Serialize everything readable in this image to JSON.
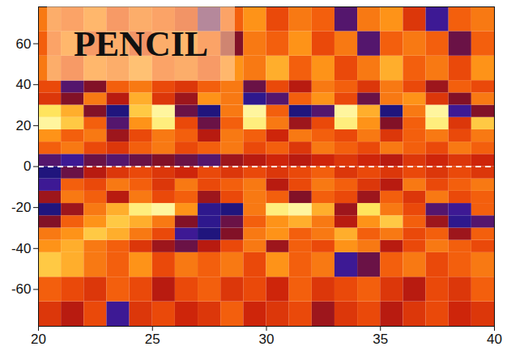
{
  "chart_data": {
    "type": "heatmap",
    "annotation": "PENCIL",
    "xlim": [
      20,
      40
    ],
    "xticks": [
      20,
      25,
      30,
      35,
      40
    ],
    "ylim": [
      -78,
      78
    ],
    "yticks": [
      -60,
      -40,
      -20,
      0,
      20,
      40,
      60
    ],
    "reference_line": 0,
    "value_range": [
      -1,
      1
    ],
    "x_edges": [
      20,
      21,
      22,
      23,
      24,
      25,
      26,
      27,
      28,
      29,
      30,
      31,
      32,
      33,
      34,
      35,
      36,
      37,
      38,
      39,
      40
    ],
    "lat_edges": [
      -78,
      -66,
      -54,
      -42,
      -36,
      -30,
      -24,
      -18,
      -12,
      -6,
      0,
      6,
      12,
      18,
      24,
      30,
      36,
      42,
      54,
      66,
      78
    ],
    "values": [
      [
        0.0,
        -0.2,
        0.1,
        -0.7,
        0.0,
        0.1,
        -0.1,
        0.0,
        0.2,
        -0.1,
        0.0,
        0.1,
        -0.3,
        0.0,
        0.1,
        -0.2,
        0.0,
        0.1,
        -0.1,
        0.0
      ],
      [
        0.2,
        0.1,
        0.0,
        0.2,
        0.1,
        -0.2,
        0.1,
        0.2,
        0.0,
        0.1,
        -0.1,
        0.2,
        0.0,
        0.1,
        0.2,
        0.0,
        -0.2,
        0.1,
        0.0,
        0.2
      ],
      [
        0.6,
        0.5,
        0.3,
        0.2,
        0.4,
        0.1,
        0.3,
        0.2,
        0.3,
        0.1,
        0.4,
        0.2,
        0.3,
        -0.7,
        -0.5,
        0.2,
        0.3,
        0.1,
        0.2,
        0.3
      ],
      [
        0.4,
        0.5,
        0.3,
        0.2,
        0.0,
        -0.3,
        -0.5,
        -0.2,
        0.1,
        0.3,
        -0.3,
        0.2,
        0.1,
        0.4,
        0.3,
        -0.2,
        0.1,
        0.3,
        0.2,
        0.1
      ],
      [
        0.3,
        0.4,
        0.6,
        0.5,
        0.3,
        0.1,
        -0.7,
        -0.9,
        -0.4,
        0.3,
        0.4,
        0.2,
        0.3,
        0.5,
        0.2,
        0.3,
        0.1,
        0.2,
        -0.3,
        0.2
      ],
      [
        -0.4,
        0.2,
        0.4,
        0.6,
        0.5,
        0.3,
        -0.4,
        -0.8,
        -0.5,
        0.2,
        0.4,
        0.5,
        0.3,
        -0.2,
        0.4,
        0.6,
        0.2,
        -0.3,
        -0.8,
        -0.6
      ],
      [
        -0.9,
        -0.3,
        0.3,
        0.5,
        0.8,
        0.9,
        0.4,
        -0.8,
        -0.9,
        0.3,
        0.8,
        0.9,
        0.5,
        -0.3,
        0.7,
        0.3,
        0.1,
        -0.6,
        -0.7,
        0.2
      ],
      [
        -0.3,
        0.3,
        0.2,
        -0.2,
        0.3,
        0.1,
        0.2,
        -0.3,
        0.1,
        0.3,
        0.2,
        -0.4,
        0.2,
        0.1,
        -0.3,
        0.2,
        0.0,
        0.3,
        0.1,
        0.2
      ],
      [
        -0.7,
        0.2,
        0.1,
        0.3,
        0.2,
        0.0,
        0.3,
        0.1,
        0.2,
        0.3,
        -0.2,
        0.1,
        0.3,
        0.2,
        0.0,
        -0.2,
        0.3,
        0.1,
        0.2,
        0.3
      ],
      [
        -0.9,
        -0.5,
        -0.2,
        0.0,
        0.1,
        0.0,
        -0.1,
        0.1,
        0.0,
        0.1,
        0.0,
        0.1,
        0.2,
        0.0,
        0.1,
        0.0,
        0.1,
        0.0,
        0.1,
        0.0
      ],
      [
        -0.6,
        -0.7,
        -0.5,
        -0.6,
        -0.5,
        -0.4,
        -0.5,
        -0.6,
        -0.3,
        -0.2,
        -0.1,
        -0.2,
        -0.1,
        0.0,
        -0.1,
        -0.2,
        0.0,
        -0.1,
        0.0,
        -0.1
      ],
      [
        0.2,
        0.3,
        0.1,
        0.0,
        0.2,
        0.3,
        0.1,
        0.2,
        0.3,
        0.1,
        0.2,
        0.0,
        0.3,
        0.2,
        0.1,
        0.3,
        0.2,
        0.1,
        0.3,
        0.2
      ],
      [
        0.4,
        0.2,
        0.3,
        -0.3,
        0.1,
        0.3,
        0.2,
        -0.2,
        0.3,
        0.2,
        -0.1,
        0.3,
        0.2,
        0.1,
        0.3,
        0.0,
        0.2,
        0.3,
        0.1,
        0.3
      ],
      [
        0.9,
        0.6,
        0.2,
        -0.6,
        0.4,
        0.8,
        0.1,
        -0.5,
        0.2,
        0.8,
        0.3,
        -0.3,
        0.1,
        0.8,
        0.4,
        -0.4,
        0.2,
        0.8,
        0.0,
        0.6
      ],
      [
        0.7,
        0.5,
        -0.4,
        -0.9,
        0.6,
        0.9,
        -0.5,
        -0.9,
        0.3,
        0.9,
        0.2,
        -0.9,
        -0.6,
        0.9,
        0.5,
        -0.9,
        0.3,
        0.9,
        -0.7,
        -0.4
      ],
      [
        0.0,
        -0.4,
        0.3,
        -0.2,
        0.5,
        0.0,
        -0.3,
        0.4,
        0.3,
        -0.8,
        -0.6,
        0.2,
        0.4,
        0.1,
        -0.5,
        0.3,
        0.4,
        0.0,
        -0.4,
        0.3
      ],
      [
        0.1,
        -0.6,
        -0.4,
        0.2,
        0.3,
        0.1,
        0.0,
        0.2,
        0.3,
        -0.5,
        0.1,
        -0.2,
        0.3,
        0.2,
        0.0,
        0.3,
        0.1,
        -0.3,
        0.2,
        0.1
      ],
      [
        0.3,
        0.1,
        0.4,
        0.3,
        0.5,
        0.2,
        0.3,
        0.1,
        0.4,
        0.3,
        0.5,
        0.2,
        0.4,
        0.1,
        0.3,
        0.5,
        0.2,
        0.3,
        0.1,
        0.4
      ],
      [
        0.2,
        0.4,
        0.1,
        0.3,
        0.0,
        0.3,
        0.4,
        0.2,
        -0.4,
        0.3,
        0.2,
        0.4,
        0.1,
        0.3,
        -0.6,
        0.2,
        0.3,
        0.2,
        -0.5,
        0.2
      ],
      [
        0.3,
        0.2,
        0.4,
        0.1,
        0.3,
        0.2,
        0.0,
        -0.7,
        0.2,
        0.4,
        0.1,
        0.3,
        0.2,
        -0.6,
        0.3,
        0.4,
        0.0,
        -0.7,
        0.2,
        0.3
      ]
    ]
  }
}
